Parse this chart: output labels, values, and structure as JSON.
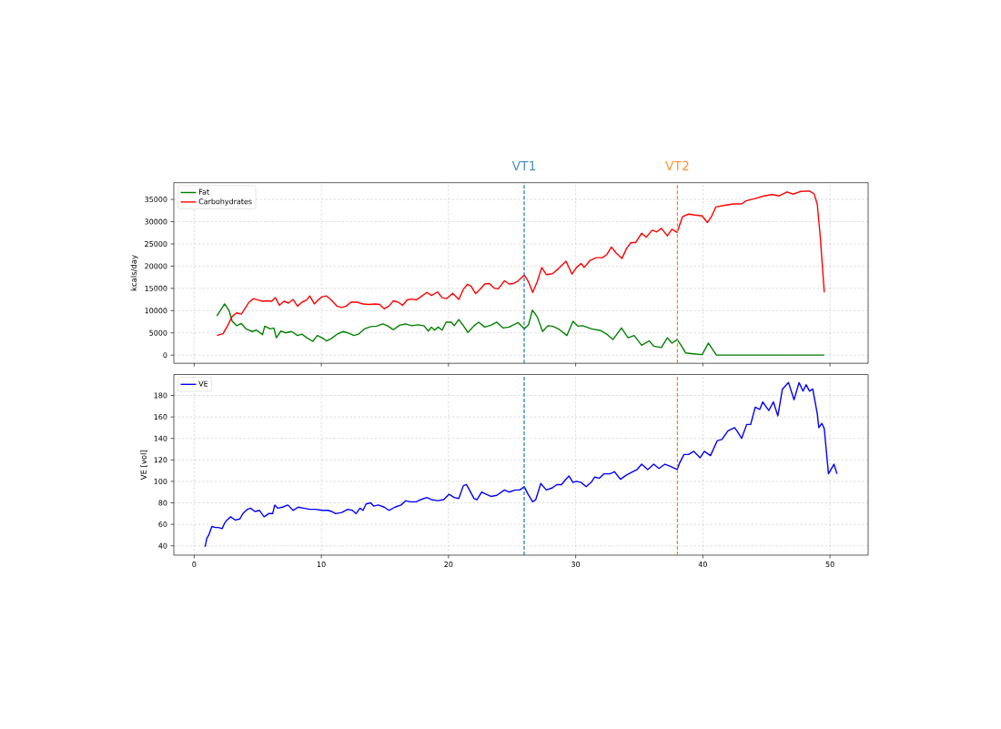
{
  "chart_data": [
    {
      "type": "line",
      "ylabel": "kcals/day",
      "xlim": [
        -1.6,
        53.0
      ],
      "ylim": [
        -1850,
        38770
      ],
      "xticks": [
        0,
        10,
        20,
        30,
        40,
        50
      ],
      "yticks": [
        0,
        5000,
        10000,
        15000,
        20000,
        25000,
        30000,
        35000
      ],
      "tick_labels": "y",
      "grid": true,
      "legend": "top left",
      "series": [
        {
          "name": "Fat",
          "color": "#008000",
          "x": [
            1.79,
            2.39,
            2.75,
            2.99,
            3.35,
            3.71,
            4.07,
            4.55,
            4.9,
            5.38,
            5.55,
            5.98,
            6.27,
            6.46,
            6.82,
            7.18,
            7.66,
            8.13,
            8.49,
            8.85,
            9.33,
            9.69,
            10.05,
            10.41,
            10.77,
            11.24,
            11.72,
            12.08,
            12.56,
            12.92,
            13.4,
            13.88,
            14.35,
            14.83,
            15.19,
            15.67,
            16.15,
            16.63,
            17.11,
            17.58,
            18.06,
            18.42,
            18.66,
            18.9,
            19.19,
            19.5,
            19.81,
            20.22,
            20.45,
            20.81,
            21.17,
            21.53,
            22.01,
            22.37,
            22.85,
            23.33,
            23.8,
            24.28,
            24.76,
            25.48,
            25.96,
            26.29,
            26.6,
            26.98,
            27.4,
            27.81,
            28.17,
            28.64,
            29.31,
            29.79,
            30.19,
            30.55,
            31.26,
            31.98,
            32.45,
            32.93,
            33.6,
            34.12,
            34.6,
            35.19,
            35.79,
            36.14,
            36.74,
            37.21,
            37.57,
            37.98,
            38.29,
            38.64,
            39.24,
            39.95,
            40.43,
            40.79,
            41.07,
            49.55
          ],
          "values": [
            8800,
            11500,
            10000,
            7600,
            6600,
            7100,
            5900,
            5300,
            5600,
            4600,
            6500,
            5900,
            6100,
            3900,
            5400,
            5000,
            5300,
            4400,
            4700,
            3900,
            3100,
            4400,
            3900,
            3200,
            3700,
            4700,
            5300,
            5000,
            4400,
            4700,
            5900,
            6400,
            6500,
            7000,
            6600,
            5700,
            6700,
            7000,
            6600,
            6800,
            6600,
            5400,
            6300,
            5600,
            6300,
            5600,
            7400,
            7400,
            6600,
            8000,
            6600,
            5100,
            6600,
            7400,
            6300,
            6700,
            7400,
            6100,
            6300,
            7300,
            5900,
            6800,
            10100,
            8600,
            5300,
            6600,
            6500,
            5900,
            4400,
            7600,
            6500,
            6600,
            5900,
            5500,
            4700,
            3500,
            6100,
            3900,
            4400,
            2200,
            3200,
            2000,
            1700,
            3900,
            2700,
            3500,
            2200,
            500,
            300,
            100,
            2700,
            1200,
            0,
            0
          ]
        },
        {
          "name": "Carbohydrates",
          "color": "#ff0000",
          "x": [
            1.79,
            2.27,
            2.63,
            2.99,
            3.35,
            3.71,
            4.07,
            4.31,
            4.67,
            5.02,
            5.38,
            5.74,
            6.1,
            6.39,
            6.7,
            7.06,
            7.42,
            7.78,
            8.13,
            8.49,
            8.85,
            9.09,
            9.45,
            9.76,
            10.05,
            10.41,
            10.77,
            11.24,
            11.6,
            11.96,
            12.32,
            12.8,
            13.28,
            13.76,
            14.23,
            14.59,
            14.95,
            15.31,
            15.67,
            16.03,
            16.39,
            16.75,
            17.11,
            17.46,
            17.82,
            18.3,
            18.66,
            19.14,
            19.5,
            19.86,
            20.33,
            20.81,
            21.17,
            21.48,
            21.77,
            22.13,
            22.49,
            22.85,
            23.21,
            23.56,
            23.92,
            24.4,
            24.76,
            25.12,
            25.48,
            25.96,
            26.29,
            26.62,
            26.98,
            27.33,
            27.69,
            28.17,
            28.64,
            29.24,
            29.71,
            30.07,
            30.43,
            30.67,
            31.14,
            31.62,
            32.1,
            32.45,
            32.81,
            33.17,
            33.64,
            34.0,
            34.36,
            34.71,
            35.19,
            35.55,
            36.02,
            36.38,
            36.74,
            37.21,
            37.57,
            37.98,
            38.4,
            38.88,
            39.36,
            39.95,
            40.36,
            40.67,
            41.02,
            41.74,
            42.45,
            43.05,
            43.4,
            44.12,
            44.83,
            45.43,
            46.02,
            46.62,
            47.1,
            47.69,
            48.4,
            48.76,
            49.0,
            49.24,
            49.55
          ],
          "values": [
            4400,
            4800,
            6600,
            8700,
            9500,
            9200,
            10800,
            11900,
            12700,
            12400,
            12100,
            12200,
            12100,
            12900,
            11200,
            12100,
            11700,
            12500,
            11000,
            11900,
            12400,
            13300,
            11500,
            12400,
            13100,
            13300,
            12400,
            11000,
            10700,
            11000,
            11900,
            11900,
            11500,
            11400,
            11500,
            11400,
            10400,
            11000,
            12200,
            11900,
            11200,
            12400,
            12600,
            12400,
            13100,
            14100,
            13400,
            14200,
            12900,
            12700,
            13900,
            12500,
            14800,
            15900,
            15500,
            13800,
            14800,
            16000,
            16100,
            15100,
            14900,
            16700,
            16000,
            16100,
            16700,
            18000,
            16500,
            14100,
            16500,
            19700,
            18100,
            18300,
            19400,
            21100,
            18200,
            19700,
            20600,
            19700,
            21300,
            21900,
            21900,
            22600,
            24300,
            23000,
            21700,
            24000,
            25300,
            25300,
            27400,
            26500,
            28100,
            27700,
            28500,
            26800,
            28300,
            27600,
            31100,
            31700,
            31500,
            31300,
            29800,
            31100,
            33300,
            33700,
            34000,
            34000,
            34700,
            35200,
            35800,
            36100,
            35800,
            36700,
            36200,
            36800,
            36900,
            36200,
            33900,
            26400,
            14100
          ]
        }
      ],
      "ref_lines": [
        {
          "axis": "x",
          "value": 25.95,
          "label": "VT1",
          "color": "#1f77b4",
          "line_style": "dashed"
        },
        {
          "axis": "x",
          "value": 38.0,
          "label": "VT2",
          "color": "#ff7f0e",
          "line_style": "dashed"
        }
      ]
    },
    {
      "type": "line",
      "ylabel": "VE [vol]",
      "xlim": [
        -1.6,
        53.0
      ],
      "ylim": [
        31.3,
        199.5
      ],
      "xticks": [
        0,
        10,
        20,
        30,
        40,
        50
      ],
      "yticks": [
        40,
        60,
        80,
        100,
        120,
        140,
        160,
        180
      ],
      "grid": true,
      "legend": "top left",
      "series": [
        {
          "name": "VE",
          "color": "#0000ff",
          "x": [
            0.86,
            1.0,
            1.15,
            1.39,
            1.67,
            1.91,
            2.2,
            2.39,
            2.58,
            2.87,
            3.23,
            3.59,
            3.83,
            4.19,
            4.43,
            4.78,
            5.14,
            5.5,
            5.86,
            6.17,
            6.34,
            6.58,
            6.94,
            7.37,
            7.78,
            8.18,
            8.61,
            9.09,
            9.57,
            10.05,
            10.53,
            10.81,
            11.12,
            11.6,
            12.08,
            12.44,
            12.73,
            13.04,
            13.28,
            13.52,
            13.88,
            14.11,
            14.47,
            14.95,
            15.31,
            15.79,
            16.27,
            16.63,
            16.99,
            17.46,
            17.82,
            18.3,
            18.66,
            19.14,
            19.62,
            20.05,
            20.45,
            20.81,
            21.17,
            21.41,
            21.65,
            22.01,
            22.25,
            22.61,
            22.97,
            23.33,
            23.8,
            24.4,
            24.76,
            25.24,
            25.6,
            25.96,
            26.26,
            26.62,
            26.86,
            27.26,
            27.69,
            28.17,
            28.52,
            28.88,
            29.24,
            29.48,
            29.79,
            30.07,
            30.43,
            30.83,
            31.21,
            31.5,
            31.86,
            32.21,
            32.69,
            33.05,
            33.52,
            34.0,
            34.48,
            34.83,
            35.19,
            35.67,
            36.14,
            36.55,
            37.02,
            37.45,
            37.98,
            38.17,
            38.52,
            38.88,
            39.29,
            39.79,
            40.12,
            40.6,
            41.14,
            41.5,
            41.98,
            42.5,
            42.74,
            43.05,
            43.45,
            43.76,
            44.12,
            44.48,
            44.71,
            45.19,
            45.55,
            45.9,
            46.26,
            46.74,
            47.17,
            47.57,
            47.88,
            48.12,
            48.4,
            48.64,
            49.0,
            49.12,
            49.36,
            49.55,
            49.88,
            50.31,
            50.55
          ],
          "values": [
            39,
            47,
            50,
            58,
            57,
            57,
            56,
            61,
            64,
            67,
            64,
            65,
            70,
            74,
            75,
            72,
            73,
            67,
            70,
            70,
            78,
            75,
            76,
            78,
            73,
            76,
            75,
            74,
            74,
            73,
            73,
            72,
            70,
            71,
            74,
            73,
            70,
            75,
            73,
            79,
            80,
            77,
            78,
            76,
            73,
            76,
            78,
            82,
            81,
            81,
            83,
            85,
            83,
            82,
            83,
            88,
            85,
            84,
            96,
            97,
            92,
            84,
            83,
            90,
            88,
            86,
            87,
            92,
            90,
            92,
            92,
            95,
            88,
            81,
            83,
            98,
            92,
            94,
            97,
            97,
            102,
            105,
            99,
            100,
            99,
            95,
            99,
            104,
            103,
            107,
            107,
            109,
            102,
            106,
            109,
            111,
            116,
            111,
            116,
            112,
            116,
            114,
            111,
            117,
            125,
            125,
            128,
            122,
            128,
            124,
            138,
            139,
            147,
            150,
            146,
            140,
            153,
            153,
            169,
            167,
            174,
            166,
            174,
            161,
            186,
            192,
            176,
            192,
            184,
            190,
            184,
            186,
            163,
            150,
            154,
            149,
            107,
            116,
            107
          ]
        }
      ],
      "ref_lines": [
        {
          "axis": "x",
          "value": 25.95,
          "color": "#1f77b4",
          "line_style": "dashed"
        },
        {
          "axis": "x",
          "value": 38.0,
          "color": "#ff7f0e",
          "line_style": "dashed"
        }
      ]
    }
  ]
}
